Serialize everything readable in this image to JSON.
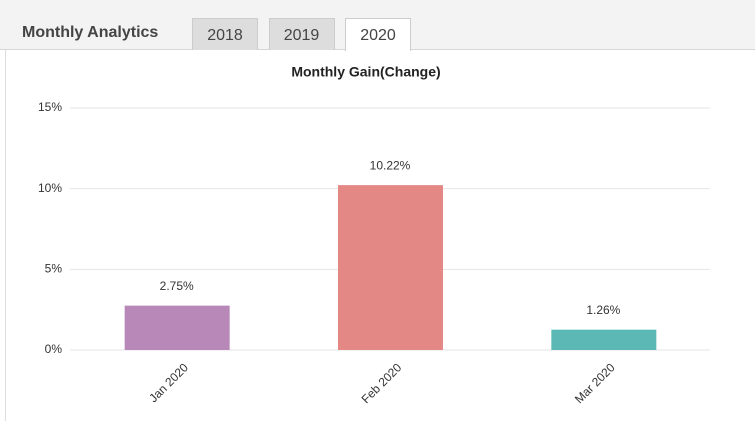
{
  "header": {
    "title": "Monthly Analytics",
    "tabs": [
      "2018",
      "2019",
      "2020"
    ],
    "active_tab": 2
  },
  "chart_data": {
    "type": "bar",
    "title": "Monthly Gain(Change)",
    "categories": [
      "Jan 2020",
      "Feb 2020",
      "Mar 2020"
    ],
    "values": [
      2.75,
      10.22,
      1.26
    ],
    "value_labels": [
      "2.75%",
      "10.22%",
      "1.26%"
    ],
    "colors": [
      "#b788b8",
      "#e48885",
      "#5cb8b4"
    ],
    "ylim": [
      0,
      15
    ],
    "yticks": [
      {
        "value": 0,
        "label": "0%"
      },
      {
        "value": 5,
        "label": "5%"
      },
      {
        "value": 10,
        "label": "10%"
      },
      {
        "value": 15,
        "label": "15%"
      }
    ],
    "grid": true
  }
}
